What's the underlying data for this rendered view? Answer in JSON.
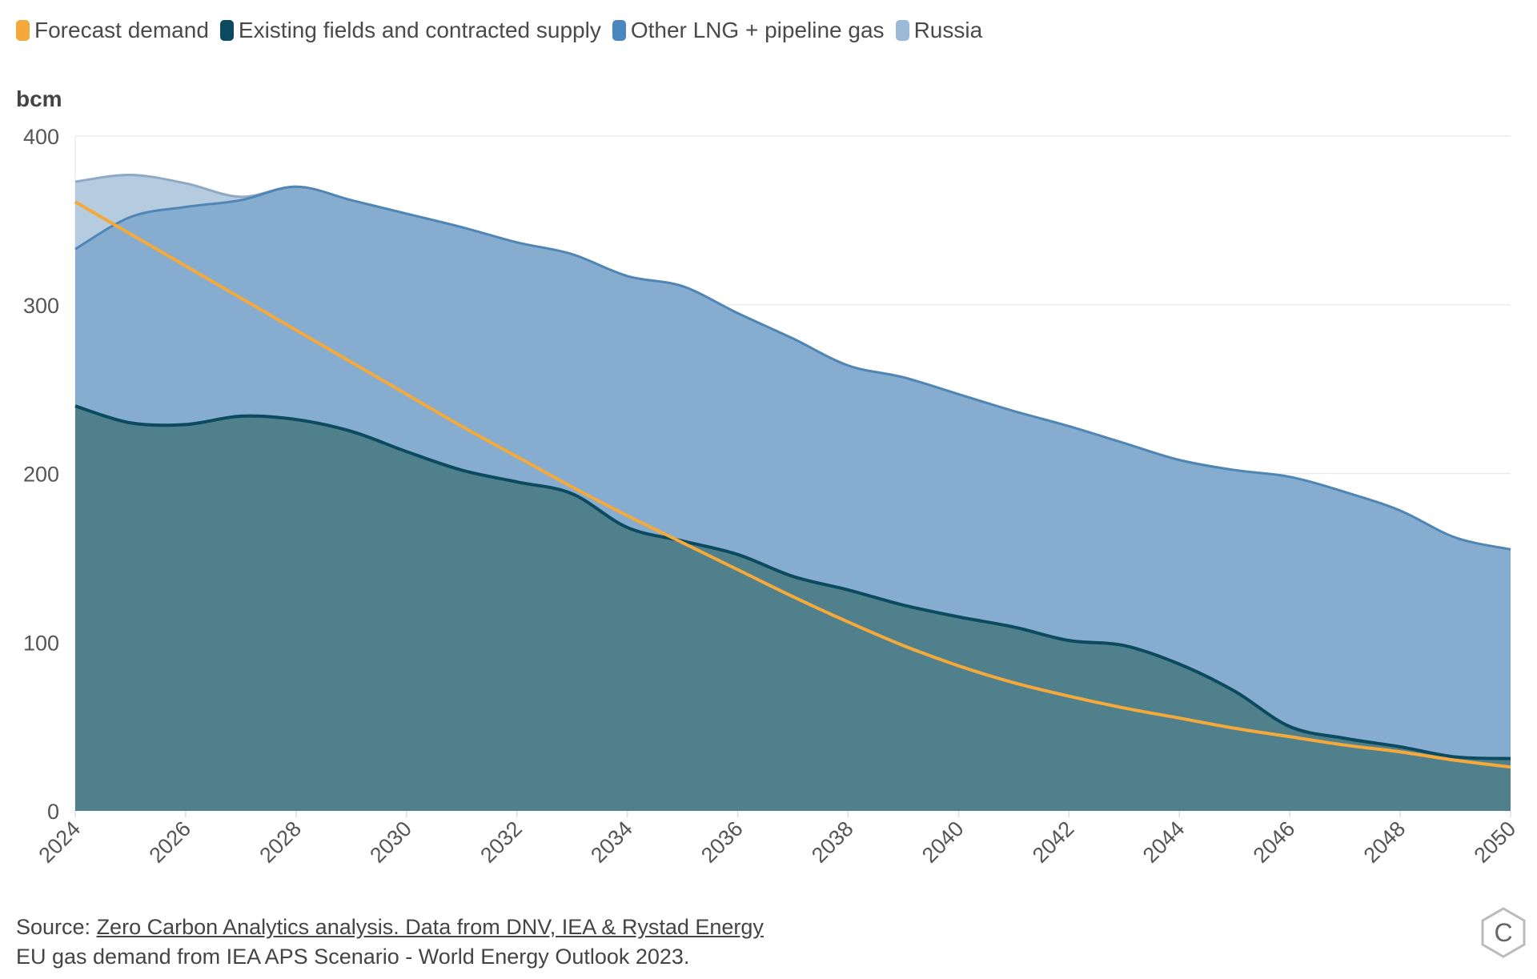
{
  "legend": [
    {
      "label": "Forecast demand",
      "color": "#f5a93a",
      "key": "demand"
    },
    {
      "label": "Existing fields and contracted supply",
      "color": "#0b4a5f",
      "key": "existing"
    },
    {
      "label": "Other LNG + pipeline gas",
      "color": "#4a87c0",
      "key": "other"
    },
    {
      "label": "Russia",
      "color": "#9cbad8",
      "key": "russia"
    }
  ],
  "colors": {
    "existing_fill": "#51808d",
    "existing_line": "#0b4a5f",
    "other_fill": "#86adcf",
    "other_line": "#4f86b5",
    "russia_fill": "#b5cbe0",
    "russia_line": "#8fa9c5",
    "demand_line": "#f5a93a",
    "grid": "#ececec"
  },
  "footer": {
    "source_prefix": "Source: ",
    "source_link": "Zero Carbon Analytics analysis. Data from DNV, IEA & Rystad Energy",
    "note": "EU gas demand from IEA APS Scenario - World Energy Outlook 2023."
  },
  "logo": {
    "icon": "hexagon-c-logo",
    "letter": "C"
  },
  "chart_data": {
    "type": "area",
    "title": "",
    "ylabel": "bcm",
    "xlabel": "",
    "ylim": [
      0,
      400
    ],
    "yticks": [
      0,
      100,
      200,
      300,
      400
    ],
    "xlim": [
      2024,
      2050
    ],
    "xticks": [
      2024,
      2026,
      2028,
      2030,
      2032,
      2034,
      2036,
      2038,
      2040,
      2042,
      2044,
      2046,
      2048,
      2050
    ],
    "grid": true,
    "legend_position": "top-left",
    "x": [
      2024,
      2025,
      2026,
      2027,
      2028,
      2029,
      2030,
      2031,
      2032,
      2033,
      2034,
      2035,
      2036,
      2037,
      2038,
      2039,
      2040,
      2041,
      2042,
      2043,
      2044,
      2045,
      2046,
      2047,
      2048,
      2049,
      2050
    ],
    "series": [
      {
        "name": "Existing fields and contracted supply",
        "kind": "stacked-area",
        "values": [
          240,
          230,
          229,
          234,
          232,
          225,
          213,
          202,
          195,
          188,
          168,
          160,
          152,
          139,
          131,
          122,
          115,
          109,
          101,
          98,
          87,
          71,
          50,
          43,
          38,
          32,
          31
        ]
      },
      {
        "name": "Other LNG + pipeline gas",
        "kind": "stacked-area",
        "cumulative_top": true,
        "values": [
          333,
          352,
          358,
          362,
          370,
          362,
          354,
          346,
          337,
          330,
          317,
          311,
          295,
          280,
          264,
          257,
          247,
          237,
          228,
          218,
          208,
          202,
          198,
          189,
          178,
          162,
          155
        ]
      },
      {
        "name": "Russia",
        "kind": "stacked-area",
        "cumulative_top": true,
        "values": [
          373,
          377,
          372,
          364,
          370,
          362,
          354,
          346,
          337,
          330,
          317,
          311,
          295,
          280,
          264,
          257,
          247,
          237,
          228,
          218,
          208,
          202,
          198,
          189,
          178,
          162,
          155
        ]
      },
      {
        "name": "Forecast demand",
        "kind": "line",
        "values": [
          361,
          342,
          323,
          304,
          285,
          266,
          247,
          228,
          210,
          192,
          175,
          159,
          143,
          127,
          112,
          98,
          86,
          76,
          68,
          61,
          55,
          49,
          44,
          39,
          35,
          30,
          26
        ]
      }
    ]
  }
}
